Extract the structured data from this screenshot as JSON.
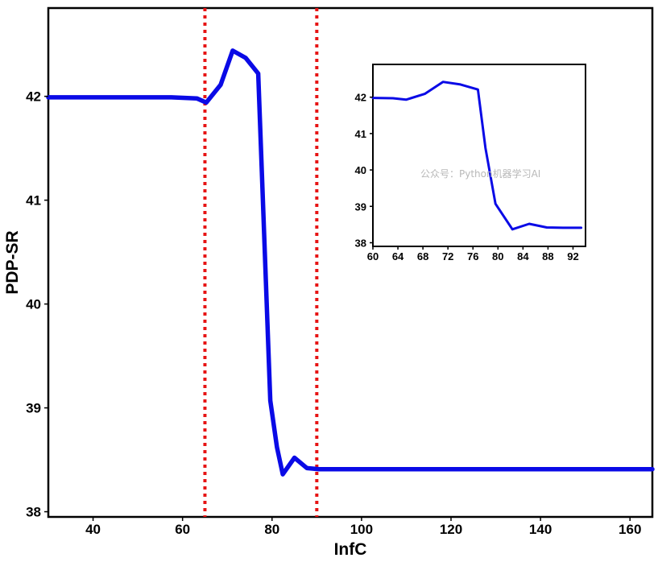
{
  "chart_data": [
    {
      "type": "line",
      "xlabel": "InfC",
      "ylabel": "PDP-SR",
      "xlim": [
        30,
        165
      ],
      "ylim": [
        37.95,
        42.85
      ],
      "xticks": [
        40,
        60,
        80,
        100,
        120,
        140,
        160
      ],
      "yticks": [
        38,
        39,
        40,
        41,
        42
      ],
      "grid": false,
      "series": [
        {
          "color": "#0a0ae6",
          "x": [
            30,
            57.5,
            63.2,
            65.3,
            68.5,
            71.2,
            74.1,
            76.9,
            79.6,
            81.1,
            82.4,
            85,
            87.8,
            90.5,
            100,
            120,
            140,
            165
          ],
          "y": [
            41.99,
            41.99,
            41.98,
            41.94,
            42.11,
            42.44,
            42.37,
            42.22,
            39.07,
            38.62,
            38.36,
            38.52,
            38.42,
            38.41,
            38.41,
            38.41,
            38.41,
            38.41
          ]
        }
      ],
      "reference_lines": {
        "orientation": "vertical",
        "style": "dotted",
        "color": "#e61414",
        "x": [
          65,
          90
        ]
      }
    },
    {
      "type": "line",
      "placement": "inset-top-right",
      "xlim": [
        60,
        94
      ],
      "ylim": [
        37.9,
        42.9
      ],
      "xticks": [
        60,
        64,
        68,
        72,
        76,
        80,
        84,
        88,
        92
      ],
      "yticks": [
        38,
        39,
        40,
        41,
        42
      ],
      "grid": false,
      "series": [
        {
          "color": "#0a0ae6",
          "x": [
            60,
            63.2,
            65.3,
            68.3,
            71.2,
            74,
            76.8,
            78,
            79.6,
            82.3,
            85,
            87.8,
            90.4,
            93.3
          ],
          "y": [
            41.98,
            41.97,
            41.93,
            42.09,
            42.42,
            42.35,
            42.21,
            40.6,
            39.07,
            38.37,
            38.52,
            38.42,
            38.41,
            38.41
          ]
        }
      ]
    }
  ],
  "watermark": {
    "text": "公众号：Python机器学习AI"
  }
}
